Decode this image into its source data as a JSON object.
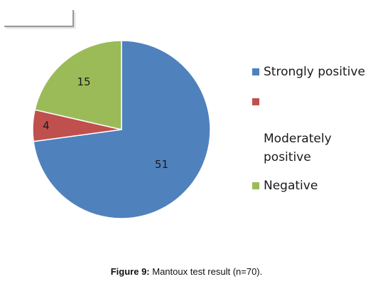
{
  "chart_data": {
    "type": "pie",
    "categories": [
      "Strongly positive",
      "Moderately positive",
      "Negative"
    ],
    "values": [
      51,
      4,
      15
    ],
    "colors": [
      "#4f81bd",
      "#c0504d",
      "#9bbb59"
    ],
    "data_labels": [
      "51",
      "4",
      "15"
    ],
    "legend": {
      "placement": "right",
      "entries": [
        "Strongly positive",
        "Moderately\npositive",
        "Negative"
      ]
    },
    "start_angle": "12 o'clock",
    "direction": "clockwise"
  },
  "caption": {
    "label": "Figure 9:",
    "text": " Mantoux test result (n=70)."
  }
}
